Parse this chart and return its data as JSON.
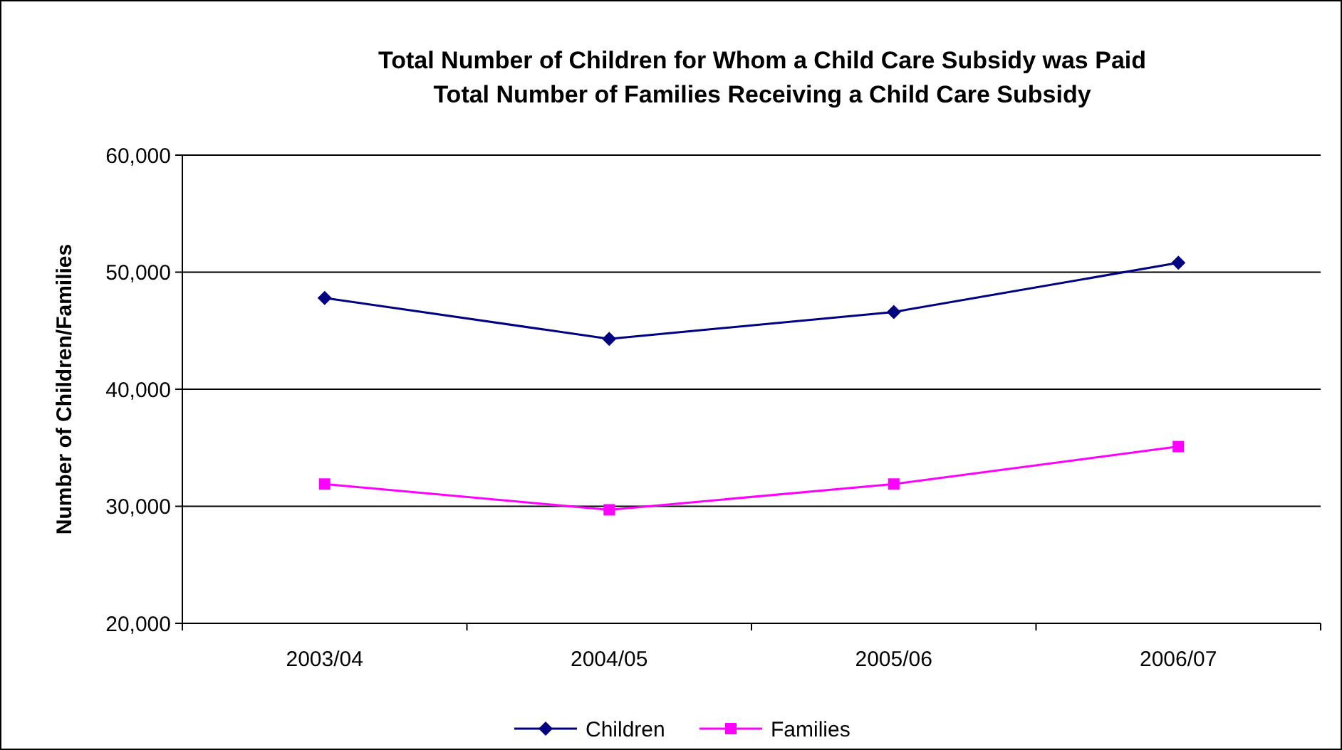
{
  "chart_data": {
    "type": "line",
    "title": "Total Number of Children for Whom a Child Care Subsidy was Paid\nTotal Number of Families Receiving a Child Care Subsidy",
    "ylabel": "Number of Children/Families",
    "categories": [
      "2003/04",
      "2004/05",
      "2005/06",
      "2006/07"
    ],
    "series": [
      {
        "name": "Children",
        "color": "#000080",
        "marker": "diamond",
        "values": [
          47800,
          44300,
          46600,
          50800
        ]
      },
      {
        "name": "Families",
        "color": "#ff00ff",
        "marker": "square",
        "values": [
          31900,
          29700,
          31900,
          35100
        ]
      }
    ],
    "ylim": [
      20000,
      60000
    ],
    "yticks": [
      {
        "value": 20000,
        "label": "20,000"
      },
      {
        "value": 30000,
        "label": "30,000"
      },
      {
        "value": 40000,
        "label": "40,000"
      },
      {
        "value": 50000,
        "label": "50,000"
      },
      {
        "value": 60000,
        "label": "60,000"
      }
    ],
    "grid": "y",
    "legend": "bottom",
    "line_style": "solid"
  }
}
